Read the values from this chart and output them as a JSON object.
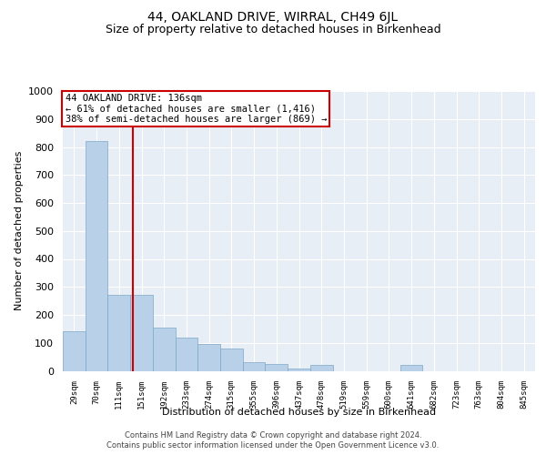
{
  "title": "44, OAKLAND DRIVE, WIRRAL, CH49 6JL",
  "subtitle": "Size of property relative to detached houses in Birkenhead",
  "xlabel": "Distribution of detached houses by size in Birkenhead",
  "ylabel": "Number of detached properties",
  "categories": [
    "29sqm",
    "70sqm",
    "111sqm",
    "151sqm",
    "192sqm",
    "233sqm",
    "274sqm",
    "315sqm",
    "355sqm",
    "396sqm",
    "437sqm",
    "478sqm",
    "519sqm",
    "559sqm",
    "600sqm",
    "641sqm",
    "682sqm",
    "723sqm",
    "763sqm",
    "804sqm",
    "845sqm"
  ],
  "values": [
    140,
    820,
    270,
    270,
    155,
    120,
    95,
    80,
    30,
    25,
    8,
    20,
    0,
    0,
    0,
    20,
    0,
    0,
    0,
    0,
    0
  ],
  "bar_color": "#b8d0e8",
  "bar_edge_color": "#7fa8c8",
  "annotation_text": "44 OAKLAND DRIVE: 136sqm\n← 61% of detached houses are smaller (1,416)\n38% of semi-detached houses are larger (869) →",
  "annotation_box_color": "#ffffff",
  "annotation_box_edge_color": "#cc0000",
  "ylim": [
    0,
    1000
  ],
  "yticks": [
    0,
    100,
    200,
    300,
    400,
    500,
    600,
    700,
    800,
    900,
    1000
  ],
  "background_color": "#ffffff",
  "plot_bg_color": "#e8eef5",
  "grid_color": "#ffffff",
  "footer_line1": "Contains HM Land Registry data © Crown copyright and database right 2024.",
  "footer_line2": "Contains public sector information licensed under the Open Government Licence v3.0.",
  "title_fontsize": 10,
  "subtitle_fontsize": 9,
  "xlabel_fontsize": 8,
  "ylabel_fontsize": 8
}
